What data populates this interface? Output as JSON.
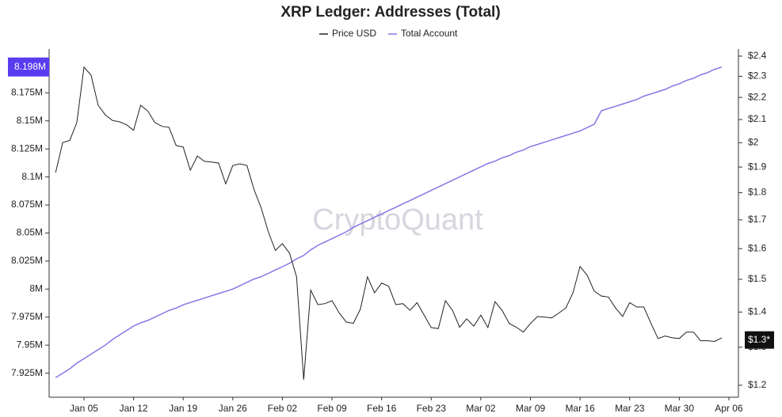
{
  "chart_data": {
    "type": "line",
    "title": "XRP Ledger: Addresses (Total)",
    "watermark": "CryptoQuant",
    "categories": [
      null,
      null,
      null,
      null,
      "Jan 05",
      null,
      null,
      null,
      null,
      null,
      null,
      "Jan 12",
      null,
      null,
      null,
      null,
      null,
      null,
      "Jan 19",
      null,
      null,
      null,
      null,
      null,
      null,
      "Jan 26",
      null,
      null,
      null,
      null,
      null,
      null,
      "Feb 02",
      null,
      null,
      null,
      null,
      null,
      null,
      "Feb 09",
      null,
      null,
      null,
      null,
      null,
      null,
      "Feb 16",
      null,
      null,
      null,
      null,
      null,
      null,
      "Feb 23",
      null,
      null,
      null,
      null,
      null,
      null,
      "Mar 02",
      null,
      null,
      null,
      null,
      null,
      null,
      "Mar 09",
      null,
      null,
      null,
      null,
      null,
      null,
      "Mar 16",
      null,
      null,
      null,
      null,
      null,
      null,
      "Mar 23",
      null,
      null,
      null,
      null,
      null,
      null,
      "Mar 30",
      null,
      null,
      null,
      null,
      null,
      null,
      "Apr 06"
    ],
    "series": [
      {
        "name": "Price USD",
        "color": "#222222",
        "axis": "y2",
        "current": {
          "value": 1.32,
          "label": "$1.3*"
        },
        "values": [
          1.878,
          2.0,
          2.01,
          2.087,
          2.345,
          2.306,
          2.164,
          2.121,
          2.096,
          2.09,
          2.077,
          2.053,
          2.164,
          2.138,
          2.087,
          2.07,
          2.066,
          1.988,
          1.982,
          1.887,
          1.945,
          1.923,
          1.92,
          1.916,
          1.834,
          1.906,
          1.913,
          1.906,
          1.811,
          1.744,
          1.658,
          1.594,
          1.617,
          1.585,
          1.508,
          1.214,
          1.466,
          1.422,
          1.425,
          1.434,
          1.398,
          1.371,
          1.367,
          1.408,
          1.508,
          1.458,
          1.488,
          1.478,
          1.422,
          1.425,
          1.405,
          1.428,
          1.391,
          1.355,
          1.352,
          1.434,
          1.405,
          1.356,
          1.38,
          1.359,
          1.391,
          1.355,
          1.431,
          1.405,
          1.367,
          1.356,
          1.342,
          1.367,
          1.387,
          1.385,
          1.383,
          1.397,
          1.412,
          1.458,
          1.541,
          1.513,
          1.463,
          1.448,
          1.445,
          1.412,
          1.387,
          1.428,
          1.415,
          1.415,
          1.367,
          1.324,
          1.331,
          1.326,
          1.324,
          1.342,
          1.342,
          1.318,
          1.318,
          1.316,
          1.326,
          null
        ]
      },
      {
        "name": "Total Account",
        "color": "#8478e6",
        "current": {
          "value": 8.198,
          "label": "8.198M"
        },
        "values": [
          7.921,
          7.925,
          7.929,
          7.934,
          7.938,
          7.942,
          7.946,
          7.95,
          7.955,
          7.959,
          7.963,
          7.967,
          7.97,
          7.972,
          7.975,
          7.978,
          7.981,
          7.983,
          7.986,
          7.988,
          7.99,
          7.992,
          7.994,
          7.996,
          7.998,
          8.0,
          8.003,
          8.006,
          8.009,
          8.011,
          8.014,
          8.017,
          8.02,
          8.023,
          8.027,
          8.03,
          8.035,
          8.039,
          8.042,
          8.045,
          8.048,
          8.051,
          8.055,
          8.058,
          8.061,
          8.064,
          8.067,
          8.07,
          8.073,
          8.076,
          8.079,
          8.082,
          8.085,
          8.088,
          8.091,
          8.094,
          8.097,
          8.1,
          8.103,
          8.106,
          8.109,
          8.112,
          8.114,
          8.117,
          8.119,
          8.122,
          8.124,
          8.127,
          8.129,
          8.131,
          8.133,
          8.135,
          8.137,
          8.139,
          8.141,
          8.144,
          8.147,
          8.159,
          8.161,
          8.163,
          8.165,
          8.167,
          8.169,
          8.172,
          8.174,
          8.176,
          8.178,
          8.181,
          8.183,
          8.186,
          8.188,
          8.191,
          8.193,
          8.196,
          8.198,
          null
        ]
      }
    ],
    "ylim": [
      7.905,
      8.214
    ],
    "yticks": [
      {
        "value": 7.925,
        "label": "7.925M"
      },
      {
        "value": 7.95,
        "label": "7.95M"
      },
      {
        "value": 7.975,
        "label": "7.975M"
      },
      {
        "value": 8.0,
        "label": "8M"
      },
      {
        "value": 8.025,
        "label": "8.025M"
      },
      {
        "value": 8.05,
        "label": "8.05M"
      },
      {
        "value": 8.075,
        "label": "8.075M"
      },
      {
        "value": 8.1,
        "label": "8.1M"
      },
      {
        "value": 8.125,
        "label": "8.125M"
      },
      {
        "value": 8.15,
        "label": "8.15M"
      },
      {
        "value": 8.175,
        "label": "8.175M"
      }
    ],
    "y2lim": [
      1.174,
      2.436
    ],
    "y2scale": "log",
    "y2ticks": [
      {
        "value": 1.2,
        "label": "$1.2"
      },
      {
        "value": 1.3,
        "label": "$1.3"
      },
      {
        "value": 1.4,
        "label": "$1.4"
      },
      {
        "value": 1.5,
        "label": "$1.5"
      },
      {
        "value": 1.6,
        "label": "$1.6"
      },
      {
        "value": 1.7,
        "label": "$1.7"
      },
      {
        "value": 1.8,
        "label": "$1.8"
      },
      {
        "value": 1.9,
        "label": "$1.9"
      },
      {
        "value": 2.0,
        "label": "$2"
      },
      {
        "value": 2.1,
        "label": "$2.1"
      },
      {
        "value": 2.2,
        "label": "$2.2"
      },
      {
        "value": 2.3,
        "label": "$2.3"
      },
      {
        "value": 2.4,
        "label": "$2.4"
      }
    ],
    "grid": false
  }
}
